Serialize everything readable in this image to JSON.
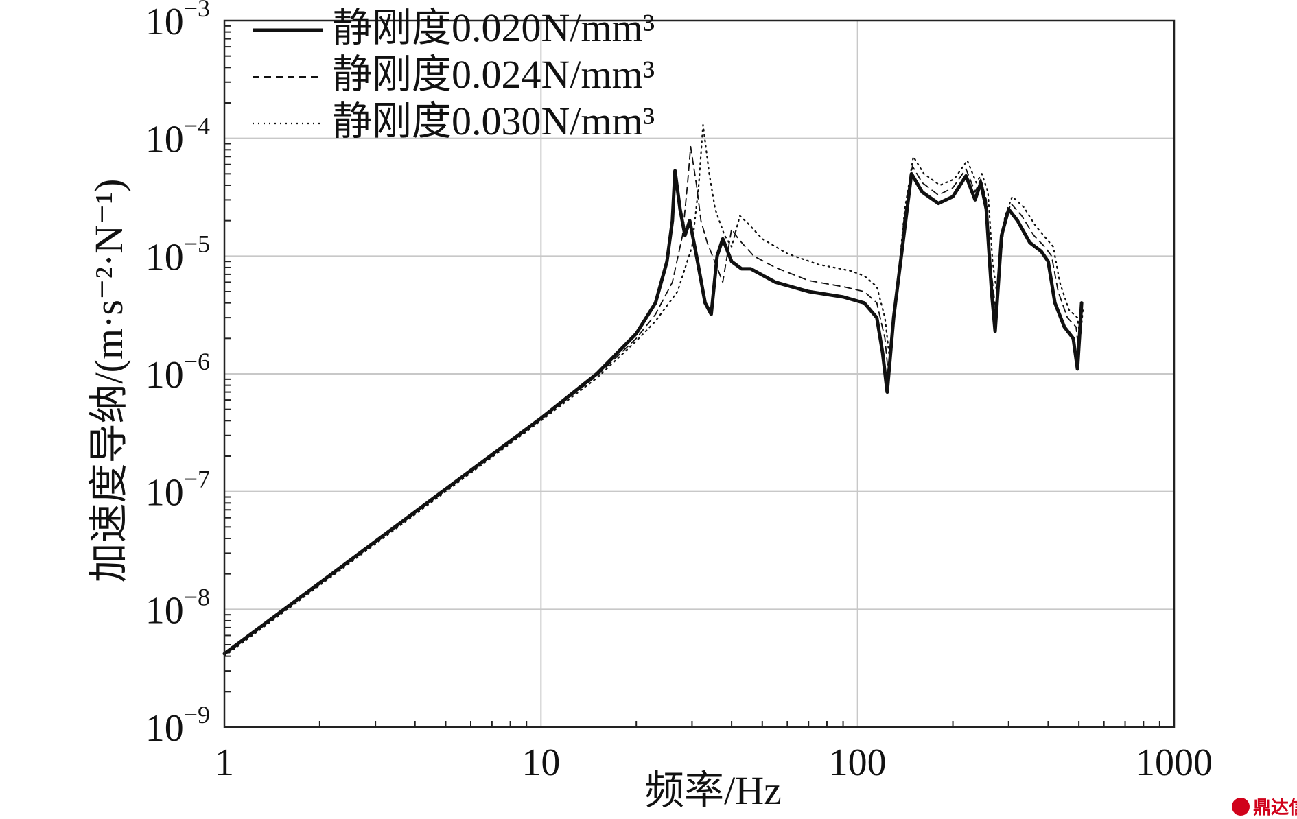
{
  "chart_data": {
    "type": "line",
    "title": "",
    "xlabel": "频率/Hz",
    "ylabel": "加速度导纳/(m·s⁻²·N⁻¹)",
    "x_scale": "log",
    "y_scale": "log",
    "xlim": [
      1,
      1000
    ],
    "ylim": [
      1e-09,
      0.001
    ],
    "x_ticks": [
      {
        "value": 1,
        "label": "1"
      },
      {
        "value": 10,
        "label": "10"
      },
      {
        "value": 100,
        "label": "100"
      },
      {
        "value": 1000,
        "label": "1000"
      }
    ],
    "y_ticks": [
      {
        "value": 1e-09,
        "base": "10",
        "exp": "−9"
      },
      {
        "value": 1e-08,
        "base": "10",
        "exp": "−8"
      },
      {
        "value": 1e-07,
        "base": "10",
        "exp": "−7"
      },
      {
        "value": 1e-06,
        "base": "10",
        "exp": "−6"
      },
      {
        "value": 1e-05,
        "base": "10",
        "exp": "−5"
      },
      {
        "value": 0.0001,
        "base": "10",
        "exp": "−4"
      },
      {
        "value": 0.001,
        "base": "10",
        "exp": "−3"
      }
    ],
    "grid": true,
    "legend_position": "top-left",
    "series": [
      {
        "name": "静刚度0.020N/mm³",
        "style": "solid",
        "points": [
          [
            1,
            4.2e-09
          ],
          [
            2,
            1.68e-08
          ],
          [
            5,
            1.05e-07
          ],
          [
            10,
            4.2e-07
          ],
          [
            15,
            1e-06
          ],
          [
            20,
            2.2e-06
          ],
          [
            23,
            4e-06
          ],
          [
            25,
            9e-06
          ],
          [
            26,
            2e-05
          ],
          [
            26.5,
            5.3e-05
          ],
          [
            27.5,
            2.5e-05
          ],
          [
            28.5,
            1.5e-05
          ],
          [
            29.5,
            2e-05
          ],
          [
            31,
            1e-05
          ],
          [
            33,
            4e-06
          ],
          [
            34.5,
            3.2e-06
          ],
          [
            36,
            1e-05
          ],
          [
            37.5,
            1.4e-05
          ],
          [
            40,
            9e-06
          ],
          [
            43,
            7.8e-06
          ],
          [
            46,
            7.8e-06
          ],
          [
            55,
            6e-06
          ],
          [
            70,
            5e-06
          ],
          [
            90,
            4.5e-06
          ],
          [
            105,
            4e-06
          ],
          [
            115,
            3e-06
          ],
          [
            120,
            1.5e-06
          ],
          [
            124,
            7e-07
          ],
          [
            130,
            3e-06
          ],
          [
            140,
            1.5e-05
          ],
          [
            148,
            5e-05
          ],
          [
            160,
            3.5e-05
          ],
          [
            180,
            2.8e-05
          ],
          [
            200,
            3.2e-05
          ],
          [
            220,
            4.8e-05
          ],
          [
            235,
            3e-05
          ],
          [
            245,
            4.2e-05
          ],
          [
            255,
            2.5e-05
          ],
          [
            265,
            5e-06
          ],
          [
            272,
            2.3e-06
          ],
          [
            285,
            1.5e-05
          ],
          [
            300,
            2.5e-05
          ],
          [
            320,
            2e-05
          ],
          [
            350,
            1.3e-05
          ],
          [
            380,
            1.1e-05
          ],
          [
            400,
            9e-06
          ],
          [
            420,
            4e-06
          ],
          [
            450,
            2.5e-06
          ],
          [
            480,
            2e-06
          ],
          [
            495,
            1.1e-06
          ],
          [
            510,
            4e-06
          ]
        ]
      },
      {
        "name": "静刚度0.024N/mm³",
        "style": "dashed",
        "points": [
          [
            1,
            4.1e-09
          ],
          [
            2,
            1.64e-08
          ],
          [
            5,
            1.03e-07
          ],
          [
            10,
            4.1e-07
          ],
          [
            15,
            9.6e-07
          ],
          [
            20,
            2e-06
          ],
          [
            23,
            3.2e-06
          ],
          [
            26,
            6e-06
          ],
          [
            28,
            1.5e-05
          ],
          [
            29,
            4e-05
          ],
          [
            29.7,
            8.5e-05
          ],
          [
            31,
            4e-05
          ],
          [
            32,
            2e-05
          ],
          [
            33.5,
            1.3e-05
          ],
          [
            36,
            8e-06
          ],
          [
            37.5,
            6e-06
          ],
          [
            40,
            1.7e-05
          ],
          [
            42,
            1.4e-05
          ],
          [
            47,
            1e-05
          ],
          [
            55,
            8e-06
          ],
          [
            70,
            6.2e-06
          ],
          [
            90,
            5.5e-06
          ],
          [
            105,
            5e-06
          ],
          [
            115,
            4e-06
          ],
          [
            122,
            2e-06
          ],
          [
            125,
            1e-06
          ],
          [
            132,
            4e-06
          ],
          [
            140,
            2e-05
          ],
          [
            149,
            5.8e-05
          ],
          [
            160,
            4.2e-05
          ],
          [
            180,
            3.3e-05
          ],
          [
            200,
            3.8e-05
          ],
          [
            220,
            5.5e-05
          ],
          [
            235,
            3.5e-05
          ],
          [
            245,
            4.5e-05
          ],
          [
            255,
            3e-05
          ],
          [
            265,
            7e-06
          ],
          [
            273,
            3.5e-06
          ],
          [
            290,
            1.8e-05
          ],
          [
            305,
            2.8e-05
          ],
          [
            330,
            2.2e-05
          ],
          [
            360,
            1.5e-05
          ],
          [
            390,
            1.2e-05
          ],
          [
            410,
            1e-05
          ],
          [
            430,
            5e-06
          ],
          [
            460,
            3e-06
          ],
          [
            490,
            2.5e-06
          ],
          [
            500,
            1.5e-06
          ],
          [
            510,
            3e-06
          ]
        ]
      },
      {
        "name": "静刚度0.030N/mm³",
        "style": "dotted",
        "points": [
          [
            1,
            4e-09
          ],
          [
            2,
            1.6e-08
          ],
          [
            5,
            1e-07
          ],
          [
            10,
            4e-07
          ],
          [
            15,
            9.2e-07
          ],
          [
            20,
            1.9e-06
          ],
          [
            23,
            2.8e-06
          ],
          [
            27,
            5e-06
          ],
          [
            30,
            1.2e-05
          ],
          [
            31.5,
            4e-05
          ],
          [
            32.5,
            0.00013
          ],
          [
            34,
            5e-05
          ],
          [
            35.5,
            2.5e-05
          ],
          [
            38,
            1.5e-05
          ],
          [
            40,
            1.2e-05
          ],
          [
            42.5,
            2.2e-05
          ],
          [
            45,
            1.9e-05
          ],
          [
            50,
            1.4e-05
          ],
          [
            60,
            1.05e-05
          ],
          [
            75,
            8.5e-06
          ],
          [
            95,
            7.5e-06
          ],
          [
            105,
            6.8e-06
          ],
          [
            115,
            5.5e-06
          ],
          [
            122,
            3e-06
          ],
          [
            126,
            1.4e-06
          ],
          [
            133,
            5e-06
          ],
          [
            141,
            2.5e-05
          ],
          [
            150,
            7e-05
          ],
          [
            162,
            5e-05
          ],
          [
            182,
            4e-05
          ],
          [
            202,
            4.5e-05
          ],
          [
            222,
            6.5e-05
          ],
          [
            237,
            4.2e-05
          ],
          [
            247,
            5e-05
          ],
          [
            258,
            3.5e-05
          ],
          [
            267,
            9e-06
          ],
          [
            275,
            5e-06
          ],
          [
            292,
            2.2e-05
          ],
          [
            308,
            3.2e-05
          ],
          [
            335,
            2.6e-05
          ],
          [
            365,
            1.8e-05
          ],
          [
            395,
            1.4e-05
          ],
          [
            415,
            1.2e-05
          ],
          [
            435,
            6e-06
          ],
          [
            465,
            3.5e-06
          ],
          [
            495,
            3e-06
          ],
          [
            505,
            2e-06
          ],
          [
            515,
            3.5e-06
          ]
        ]
      }
    ]
  },
  "watermark": {
    "text": "鼎达信",
    "icon": "ddx-logo-icon"
  }
}
